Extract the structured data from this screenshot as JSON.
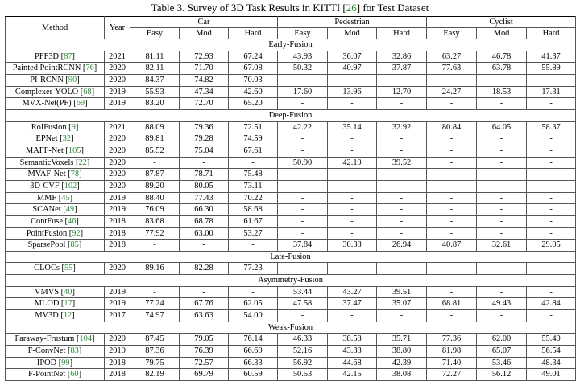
{
  "caption": {
    "prefix": "Table 3. Survey of 3D Task Results in KITTI [",
    "ref": "26",
    "suffix": "] for Test Dataset"
  },
  "header": {
    "method": "Method",
    "year": "Year",
    "groups": [
      "Car",
      "Pedestrian",
      "Cyclist"
    ],
    "sub": [
      "Easy",
      "Mod",
      "Hard",
      "Easy",
      "Mod",
      "Hard",
      "Easy",
      "Mod",
      "Hard"
    ]
  },
  "sections": [
    {
      "title": "Early-Fusion",
      "rows": [
        {
          "name": "PFF3D",
          "ref": "87",
          "year": "2021",
          "vals": [
            "81.11",
            "72.93",
            "67.24",
            "43.93",
            "36.07",
            "32.86",
            "63.27",
            "46.78",
            "41.37"
          ]
        },
        {
          "name": "Painted PointRCNN",
          "ref": "76",
          "year": "2020",
          "vals": [
            "82.11",
            "71.70",
            "67.08",
            "50.32",
            "40.97",
            "37.87",
            "77.63",
            "63.78",
            "55.89"
          ]
        },
        {
          "name": "PI-RCNN",
          "ref": "90",
          "year": "2020",
          "vals": [
            "84.37",
            "74.82",
            "70.03",
            "-",
            "-",
            "-",
            "-",
            "-",
            "-"
          ]
        },
        {
          "name": "Complexer-YOLO",
          "ref": "68",
          "year": "2019",
          "vals": [
            "55.93",
            "47.34",
            "42.60",
            "17.60",
            "13.96",
            "12.70",
            "24.27",
            "18.53",
            "17.31"
          ]
        },
        {
          "name": "MVX-Net(PF)",
          "ref": "69",
          "year": "2019",
          "vals": [
            "83.20",
            "72.70",
            "65.20",
            "-",
            "-",
            "-",
            "-",
            "-",
            "-"
          ]
        }
      ]
    },
    {
      "title": "Deep-Fusion",
      "rows": [
        {
          "name": "RoIFusion",
          "ref": "9",
          "year": "2021",
          "vals": [
            "88.09",
            "79.36",
            "72.51",
            "42.22",
            "35.14",
            "32.92",
            "80.84",
            "64.05",
            "58.37"
          ]
        },
        {
          "name": "EPNet",
          "ref": "32",
          "year": "2020",
          "vals": [
            "89.81",
            "79.28",
            "74.59",
            "-",
            "-",
            "-",
            "-",
            "-",
            "-"
          ]
        },
        {
          "name": "MAFF-Net",
          "ref": "105",
          "year": "2020",
          "vals": [
            "85.52",
            "75.04",
            "67.61",
            "-",
            "-",
            "-",
            "-",
            "-",
            "-"
          ]
        },
        {
          "name": "SemanticVoxels",
          "ref": "22",
          "year": "2020",
          "vals": [
            "-",
            "-",
            "-",
            "50.90",
            "42.19",
            "39.52",
            "-",
            "-",
            "-"
          ]
        },
        {
          "name": "MVAF-Net",
          "ref": "78",
          "year": "2020",
          "vals": [
            "87.87",
            "78.71",
            "75.48",
            "-",
            "-",
            "-",
            "-",
            "-",
            "-"
          ]
        },
        {
          "name": "3D-CVF",
          "ref": "102",
          "year": "2020",
          "vals": [
            "89.20",
            "80.05",
            "73.11",
            "-",
            "-",
            "-",
            "-",
            "-",
            "-"
          ]
        },
        {
          "name": "MMF",
          "ref": "45",
          "year": "2019",
          "vals": [
            "88.40",
            "77.43",
            "70.22",
            "-",
            "-",
            "-",
            "-",
            "-",
            "-"
          ]
        },
        {
          "name": "SCANet",
          "ref": "49",
          "year": "2019",
          "vals": [
            "76.09",
            "66.30",
            "58.68",
            "-",
            "-",
            "-",
            "-",
            "-",
            "-"
          ]
        },
        {
          "name": "ContFuse",
          "ref": "46",
          "year": "2018",
          "vals": [
            "83.68",
            "68.78",
            "61.67",
            "-",
            "-",
            "-",
            "-",
            "-",
            "-"
          ]
        },
        {
          "name": "PointFusion",
          "ref": "92",
          "year": "2018",
          "vals": [
            "77.92",
            "63.00",
            "53.27",
            "-",
            "-",
            "-",
            "-",
            "-",
            "-"
          ]
        },
        {
          "name": "SparsePool",
          "ref": "85",
          "year": "2018",
          "vals": [
            "-",
            "-",
            "-",
            "37.84",
            "30.38",
            "26.94",
            "40.87",
            "32.61",
            "29.05"
          ]
        }
      ]
    },
    {
      "title": "Late-Fusion",
      "rows": [
        {
          "name": "CLOCs",
          "ref": "55",
          "year": "2020",
          "vals": [
            "89.16",
            "82.28",
            "77.23",
            "-",
            "-",
            "-",
            "-",
            "-",
            "-"
          ]
        }
      ]
    },
    {
      "title": "Asymmetry-Fusion",
      "rows": [
        {
          "name": "VMVS",
          "ref": "40",
          "year": "2019",
          "vals": [
            "-",
            "-",
            "-",
            "53.44",
            "43.27",
            "39.51",
            "-",
            "-",
            "-"
          ]
        },
        {
          "name": "MLOD",
          "ref": "17",
          "year": "2019",
          "vals": [
            "77.24",
            "67.76",
            "62.05",
            "47.58",
            "37.47",
            "35.07",
            "68.81",
            "49.43",
            "42.84"
          ]
        },
        {
          "name": "MV3D",
          "ref": "12",
          "year": "2017",
          "vals": [
            "74.97",
            "63.63",
            "54.00",
            "-",
            "-",
            "-",
            "-",
            "-",
            "-"
          ]
        }
      ]
    },
    {
      "title": "Weak-Fusion",
      "rows": [
        {
          "name": "Faraway-Frustum",
          "ref": "104",
          "year": "2020",
          "vals": [
            "87.45",
            "79.05",
            "76.14",
            "46.33",
            "38.58",
            "35.71",
            "77.36",
            "62.00",
            "55.40"
          ]
        },
        {
          "name": "F-ConvNet",
          "ref": "83",
          "year": "2019",
          "vals": [
            "87.36",
            "76.39",
            "66.69",
            "52.16",
            "43.38",
            "38.80",
            "81.98",
            "65.07",
            "56.54"
          ]
        },
        {
          "name": "IPOD",
          "ref": "99",
          "year": "2018",
          "vals": [
            "79.75",
            "72.57",
            "66.33",
            "56.92",
            "44.68",
            "42.39",
            "71.40",
            "53.46",
            "48.34"
          ]
        },
        {
          "name": "F-PointNet",
          "ref": "60",
          "year": "2018",
          "vals": [
            "82.19",
            "69.79",
            "60.59",
            "50.53",
            "42.15",
            "38.08",
            "72.27",
            "56.12",
            "49.01"
          ]
        }
      ]
    }
  ],
  "colors": {
    "reference": "#2e8b3a",
    "text": "#000000",
    "rule": "#555555"
  }
}
